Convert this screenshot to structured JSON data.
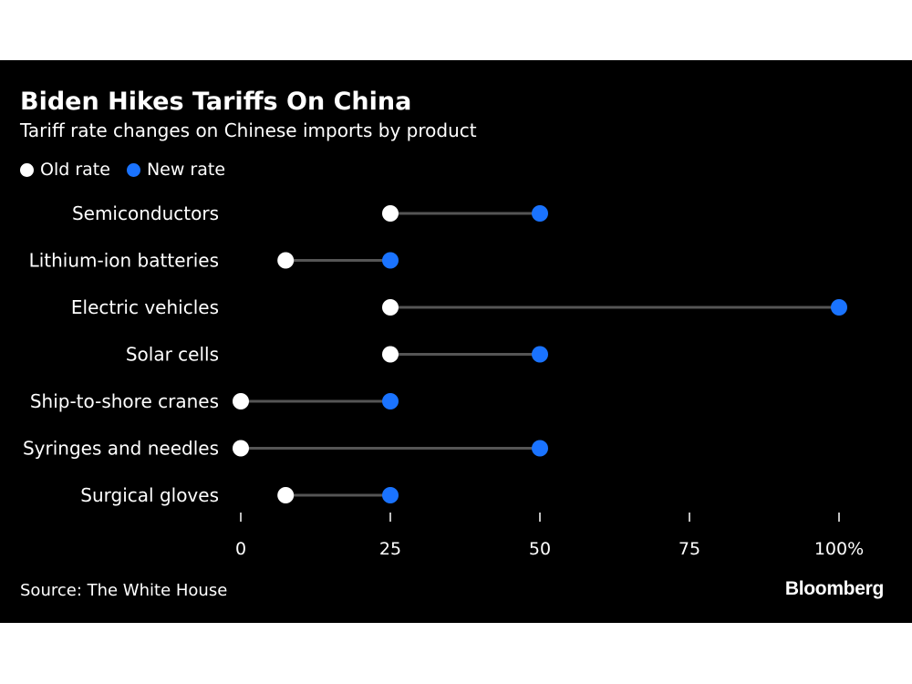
{
  "title": "Biden Hikes Tariffs On China",
  "subtitle": "Tariff rate changes on Chinese imports by product",
  "legend": {
    "old_label": "Old rate",
    "new_label": "New rate"
  },
  "colors": {
    "old": "#ffffff",
    "new": "#1a73ff",
    "connector": "#555555",
    "background": "#000000"
  },
  "source": "Source: The White House",
  "brand": "Bloomberg",
  "chart_data": {
    "type": "dumbbell",
    "title": "Biden Hikes Tariffs On China",
    "subtitle": "Tariff rate changes on Chinese imports by product",
    "categories": [
      "Semiconductors",
      "Lithium-ion batteries",
      "Electric vehicles",
      "Solar cells",
      "Ship-to-shore cranes",
      "Syringes and needles",
      "Surgical gloves"
    ],
    "series": [
      {
        "name": "Old rate",
        "values": [
          25,
          7.5,
          25,
          25,
          0,
          0,
          7.5
        ]
      },
      {
        "name": "New rate",
        "values": [
          50,
          25,
          100,
          50,
          25,
          50,
          25
        ]
      }
    ],
    "xlim": [
      0,
      100
    ],
    "xticks": [
      0,
      25,
      50,
      75,
      100
    ],
    "xtick_labels": [
      "0",
      "25",
      "50",
      "75",
      "100%"
    ],
    "legend_position": "top-left",
    "grid": false
  }
}
